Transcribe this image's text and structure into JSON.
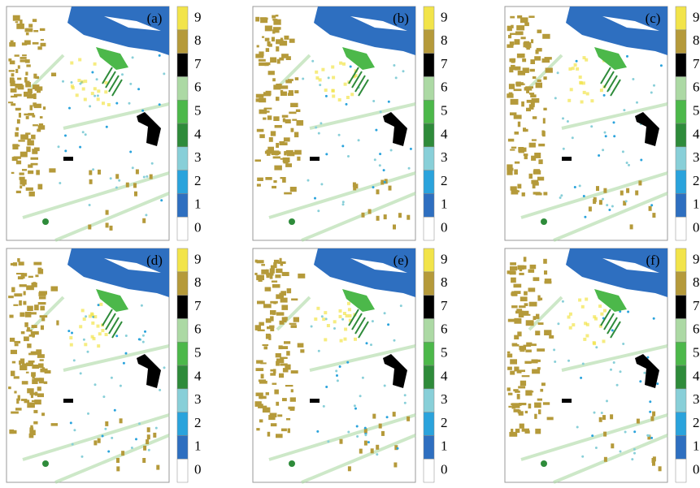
{
  "panels": [
    {
      "label": "(a)"
    },
    {
      "label": "(b)"
    },
    {
      "label": "(c)"
    },
    {
      "label": "(d)"
    },
    {
      "label": "(e)"
    },
    {
      "label": "(f)"
    }
  ],
  "colorbar": {
    "labels": [
      "0",
      "1",
      "2",
      "3",
      "4",
      "5",
      "6",
      "7",
      "8",
      "9"
    ],
    "colors": [
      "#ffffff",
      "#2e6fc0",
      "#2aa3dc",
      "#88cfd8",
      "#2e8b3a",
      "#4cb84a",
      "#acd9a4",
      "#000000",
      "#b59a3a",
      "#f2e44a"
    ]
  }
}
